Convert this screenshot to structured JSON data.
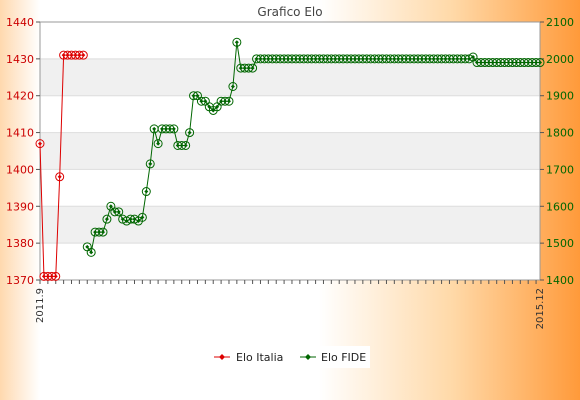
{
  "chart_data": {
    "type": "line",
    "title": "Grafico Elo",
    "y_left": {
      "min": 1370,
      "max": 1440,
      "step": 10
    },
    "y_right": {
      "min": 1400,
      "max": 2100,
      "step": 100
    },
    "x_labels_partial": [
      "2011.9",
      "2015.12"
    ],
    "series": [
      {
        "name": "Elo Italia",
        "axis": "left",
        "color": "#dd0000",
        "points": [
          [
            0,
            1407
          ],
          [
            1,
            1371
          ],
          [
            2,
            1371
          ],
          [
            3,
            1371
          ],
          [
            4,
            1371
          ],
          [
            5,
            1398
          ],
          [
            6,
            1431
          ],
          [
            7,
            1431
          ],
          [
            8,
            1431
          ],
          [
            9,
            1431
          ],
          [
            10,
            1431
          ],
          [
            11,
            1431
          ]
        ]
      },
      {
        "name": "Elo FIDE",
        "axis": "right",
        "color": "#006600",
        "points": [
          [
            12,
            1490
          ],
          [
            13,
            1475
          ],
          [
            14,
            1530
          ],
          [
            15,
            1530
          ],
          [
            16,
            1530
          ],
          [
            17,
            1565
          ],
          [
            18,
            1600
          ],
          [
            19,
            1585
          ],
          [
            20,
            1585
          ],
          [
            21,
            1565
          ],
          [
            22,
            1560
          ],
          [
            23,
            1565
          ],
          [
            24,
            1565
          ],
          [
            25,
            1560
          ],
          [
            26,
            1570
          ],
          [
            27,
            1640
          ],
          [
            28,
            1715
          ],
          [
            29,
            1810
          ],
          [
            30,
            1770
          ],
          [
            31,
            1810
          ],
          [
            32,
            1810
          ],
          [
            33,
            1810
          ],
          [
            34,
            1810
          ],
          [
            35,
            1765
          ],
          [
            36,
            1765
          ],
          [
            37,
            1765
          ],
          [
            38,
            1800
          ],
          [
            39,
            1900
          ],
          [
            40,
            1900
          ],
          [
            41,
            1885
          ],
          [
            42,
            1885
          ],
          [
            43,
            1870
          ],
          [
            44,
            1860
          ],
          [
            45,
            1870
          ],
          [
            46,
            1885
          ],
          [
            47,
            1885
          ],
          [
            48,
            1885
          ],
          [
            49,
            1925
          ],
          [
            50,
            2045
          ],
          [
            51,
            1975
          ],
          [
            52,
            1975
          ],
          [
            53,
            1975
          ],
          [
            54,
            1975
          ],
          [
            55,
            2000
          ],
          [
            56,
            2000
          ],
          [
            57,
            2000
          ],
          [
            58,
            2000
          ],
          [
            59,
            2000
          ],
          [
            60,
            2000
          ],
          [
            61,
            2000
          ],
          [
            62,
            2000
          ],
          [
            63,
            2000
          ],
          [
            64,
            2000
          ],
          [
            65,
            2000
          ],
          [
            66,
            2000
          ],
          [
            67,
            2000
          ],
          [
            68,
            2000
          ],
          [
            69,
            2000
          ],
          [
            70,
            2000
          ],
          [
            71,
            2000
          ],
          [
            72,
            2000
          ],
          [
            73,
            2000
          ],
          [
            74,
            2000
          ],
          [
            75,
            2000
          ],
          [
            76,
            2000
          ],
          [
            77,
            2000
          ],
          [
            78,
            2000
          ],
          [
            79,
            2000
          ],
          [
            80,
            2000
          ],
          [
            81,
            2000
          ],
          [
            82,
            2000
          ],
          [
            83,
            2000
          ],
          [
            84,
            2000
          ],
          [
            85,
            2000
          ],
          [
            86,
            2000
          ],
          [
            87,
            2000
          ],
          [
            88,
            2000
          ],
          [
            89,
            2000
          ],
          [
            90,
            2000
          ],
          [
            91,
            2000
          ],
          [
            92,
            2000
          ],
          [
            93,
            2000
          ],
          [
            94,
            2000
          ],
          [
            95,
            2000
          ],
          [
            96,
            2000
          ],
          [
            97,
            2000
          ],
          [
            98,
            2000
          ],
          [
            99,
            2000
          ],
          [
            100,
            2000
          ],
          [
            101,
            2000
          ],
          [
            102,
            2000
          ],
          [
            103,
            2000
          ],
          [
            104,
            2000
          ],
          [
            105,
            2000
          ],
          [
            106,
            2000
          ],
          [
            107,
            2000
          ],
          [
            108,
            2000
          ],
          [
            109,
            2000
          ],
          [
            110,
            2005
          ],
          [
            111,
            1990
          ],
          [
            112,
            1990
          ],
          [
            113,
            1990
          ],
          [
            114,
            1990
          ],
          [
            115,
            1990
          ],
          [
            116,
            1990
          ],
          [
            117,
            1990
          ],
          [
            118,
            1990
          ],
          [
            119,
            1990
          ],
          [
            120,
            1990
          ],
          [
            121,
            1990
          ],
          [
            122,
            1990
          ],
          [
            123,
            1990
          ],
          [
            124,
            1990
          ],
          [
            125,
            1990
          ],
          [
            126,
            1990
          ],
          [
            127,
            1990
          ]
        ]
      }
    ],
    "legend_position": "bottom-center",
    "grid": true
  }
}
